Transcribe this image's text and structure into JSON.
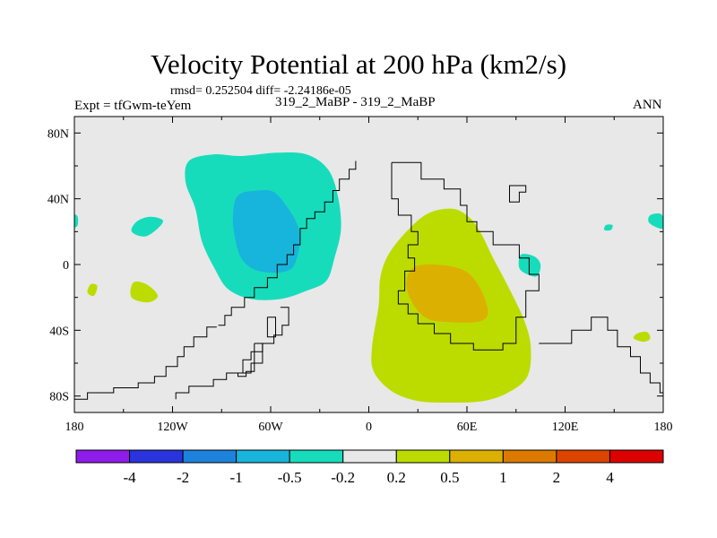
{
  "chart_data": {
    "type": "contour-map",
    "title": "Velocity Potential at 200 hPa (km2/s)",
    "stats": "rmsd= 0.252504 diff= -2.24186e-05",
    "experiment": "Expt = tfGwm-teYem",
    "case": "319_2_MaBP - 319_2_MaBP",
    "season": "ANN",
    "xlim": [
      -180,
      180
    ],
    "ylim": [
      -90,
      90
    ],
    "x_ticks": [
      {
        "value": -180,
        "label": "180"
      },
      {
        "value": -120,
        "label": "120W"
      },
      {
        "value": -60,
        "label": "60W"
      },
      {
        "value": 0,
        "label": "0"
      },
      {
        "value": 60,
        "label": "60E"
      },
      {
        "value": 120,
        "label": "120E"
      },
      {
        "value": 180,
        "label": "180"
      }
    ],
    "y_ticks": [
      {
        "value": 80,
        "label": "80N"
      },
      {
        "value": 40,
        "label": "40N"
      },
      {
        "value": 0,
        "label": "0"
      },
      {
        "value": -40,
        "label": "40S"
      },
      {
        "value": -80,
        "label": "80S"
      }
    ],
    "levels": [
      "-4",
      "-2",
      "-1",
      "-0.5",
      "-0.2",
      "0.2",
      "0.5",
      "1",
      "2",
      "4"
    ],
    "fill_colors": [
      "#8f1cea",
      "#2a33dc",
      "#1d82dc",
      "#17b4dc",
      "#17dcbc",
      "#e8e8e8",
      "#bcdc00",
      "#dcb000",
      "#dc7a00",
      "#dc4400",
      "#dc0000"
    ],
    "background_color": "#e8e8e8",
    "regions": [
      {
        "name": "western-hemisphere-negative-low",
        "level_index": 4,
        "outline": [
          [
            -110,
            63
          ],
          [
            -95,
            67
          ],
          [
            -78,
            66
          ],
          [
            -56,
            68
          ],
          [
            -38,
            67
          ],
          [
            -25,
            58
          ],
          [
            -19,
            42
          ],
          [
            -17,
            22
          ],
          [
            -21,
            4
          ],
          [
            -26,
            -10
          ],
          [
            -38,
            -16
          ],
          [
            -54,
            -21
          ],
          [
            -72,
            -21
          ],
          [
            -86,
            -15
          ],
          [
            -94,
            -3
          ],
          [
            -102,
            14
          ],
          [
            -106,
            34
          ],
          [
            -112,
            50
          ]
        ]
      },
      {
        "name": "western-hemisphere-negative-core",
        "level_index": 3,
        "outline": [
          [
            -80,
            42
          ],
          [
            -68,
            45
          ],
          [
            -58,
            44
          ],
          [
            -50,
            35
          ],
          [
            -44,
            25
          ],
          [
            -42,
            16
          ],
          [
            -44,
            4
          ],
          [
            -48,
            -3
          ],
          [
            -58,
            -5
          ],
          [
            -70,
            -3
          ],
          [
            -78,
            4
          ],
          [
            -82,
            17
          ],
          [
            -83,
            30
          ]
        ]
      },
      {
        "name": "pacific-small-negative",
        "level_index": 4,
        "outline": [
          [
            -142,
            26
          ],
          [
            -134,
            29
          ],
          [
            -126,
            27
          ],
          [
            -129,
            22
          ],
          [
            -137,
            17
          ],
          [
            -145,
            20
          ]
        ]
      },
      {
        "name": "far-east-negative-patch",
        "level_index": 4,
        "outline": [
          [
            172,
            30
          ],
          [
            178,
            31
          ],
          [
            180,
            28
          ],
          [
            180,
            22
          ],
          [
            175,
            23
          ],
          [
            171,
            26
          ]
        ]
      },
      {
        "name": "tiny-east-negative-patch",
        "level_index": 4,
        "outline": [
          [
            145,
            24
          ],
          [
            149,
            24
          ],
          [
            148,
            21
          ],
          [
            144,
            21
          ]
        ]
      },
      {
        "name": "west-edge-negative-patch",
        "level_index": 4,
        "outline": [
          [
            -180,
            30
          ],
          [
            -178,
            29
          ],
          [
            -178,
            24
          ],
          [
            -180,
            23
          ]
        ]
      },
      {
        "name": "indian-ocean-negative-patch",
        "level_index": 4,
        "outline": [
          [
            93,
            6
          ],
          [
            101,
            5
          ],
          [
            105,
            0
          ],
          [
            103,
            -7
          ],
          [
            97,
            -6
          ],
          [
            92,
            -2
          ]
        ]
      },
      {
        "name": "eastern-hemisphere-positive-low",
        "level_index": 6,
        "outline": [
          [
            23,
            20
          ],
          [
            36,
            31
          ],
          [
            51,
            34
          ],
          [
            61,
            29
          ],
          [
            68,
            20
          ],
          [
            76,
            4
          ],
          [
            86,
            -15
          ],
          [
            95,
            -34
          ],
          [
            99,
            -50
          ],
          [
            97,
            -68
          ],
          [
            85,
            -78
          ],
          [
            70,
            -83
          ],
          [
            50,
            -84
          ],
          [
            30,
            -83
          ],
          [
            14,
            -77
          ],
          [
            3,
            -65
          ],
          [
            2,
            -50
          ],
          [
            6,
            -25
          ],
          [
            7,
            -8
          ],
          [
            12,
            6
          ]
        ]
      },
      {
        "name": "eastern-hemisphere-positive-core",
        "level_index": 7,
        "outline": [
          [
            27,
            -2
          ],
          [
            40,
            0
          ],
          [
            57,
            -3
          ],
          [
            66,
            -11
          ],
          [
            72,
            -24
          ],
          [
            72,
            -32
          ],
          [
            65,
            -35
          ],
          [
            50,
            -35
          ],
          [
            36,
            -33
          ],
          [
            27,
            -24
          ],
          [
            23,
            -12
          ]
        ]
      },
      {
        "name": "pacific-positive-patch-1",
        "level_index": 6,
        "outline": [
          [
            -170,
            -12
          ],
          [
            -166,
            -13
          ],
          [
            -168,
            -19
          ],
          [
            -172,
            -17
          ]
        ]
      },
      {
        "name": "pacific-positive-patch-2",
        "level_index": 6,
        "outline": [
          [
            -144,
            -11
          ],
          [
            -136,
            -12
          ],
          [
            -129,
            -19
          ],
          [
            -135,
            -23
          ],
          [
            -145,
            -20
          ]
        ]
      },
      {
        "name": "east-pacific-positive-patch",
        "level_index": 6,
        "outline": [
          [
            164,
            -42
          ],
          [
            170,
            -41
          ],
          [
            172,
            -45
          ],
          [
            168,
            -47
          ],
          [
            162,
            -45
          ]
        ]
      }
    ],
    "coastlines": [
      {
        "name": "north-america-outline",
        "points": [
          [
            -8,
            63
          ],
          [
            -8,
            58
          ],
          [
            -12,
            58
          ],
          [
            -12,
            52
          ],
          [
            -18,
            52
          ],
          [
            -18,
            45
          ],
          [
            -22,
            45
          ],
          [
            -22,
            38
          ],
          [
            -27,
            38
          ],
          [
            -27,
            32
          ],
          [
            -33,
            32
          ],
          [
            -33,
            28
          ],
          [
            -38,
            28
          ],
          [
            -38,
            22
          ],
          [
            -42,
            22
          ],
          [
            -42,
            12
          ],
          [
            -46,
            12
          ],
          [
            -46,
            6
          ],
          [
            -50,
            6
          ],
          [
            -50,
            0
          ],
          [
            -56,
            0
          ],
          [
            -56,
            -8
          ],
          [
            -62,
            -8
          ],
          [
            -62,
            -14
          ],
          [
            -70,
            -14
          ],
          [
            -70,
            -20
          ],
          [
            -76,
            -20
          ],
          [
            -76,
            -26
          ],
          [
            -84,
            -26
          ],
          [
            -84,
            -31
          ],
          [
            -88,
            -31
          ],
          [
            -88,
            -37
          ],
          [
            -92,
            -37
          ]
        ]
      },
      {
        "name": "south-america-west-outline",
        "points": [
          [
            -93,
            -38
          ],
          [
            -99,
            -38
          ],
          [
            -99,
            -44
          ],
          [
            -107,
            -44
          ],
          [
            -107,
            -50
          ],
          [
            -113,
            -50
          ],
          [
            -113,
            -56
          ],
          [
            -117,
            -56
          ],
          [
            -117,
            -62
          ],
          [
            -124,
            -62
          ],
          [
            -124,
            -68
          ],
          [
            -131,
            -68
          ],
          [
            -131,
            -72
          ],
          [
            -141,
            -72
          ],
          [
            -141,
            -75
          ],
          [
            -156,
            -75
          ],
          [
            -156,
            -78
          ],
          [
            -172,
            -78
          ],
          [
            -172,
            -82
          ],
          [
            -180,
            -82
          ]
        ]
      },
      {
        "name": "south-america-east-outline",
        "points": [
          [
            -54,
            -26
          ],
          [
            -49,
            -26
          ],
          [
            -49,
            -37
          ],
          [
            -53,
            -37
          ],
          [
            -53,
            -43
          ],
          [
            -58,
            -43
          ],
          [
            -58,
            -48
          ],
          [
            -65,
            -48
          ],
          [
            -65,
            -53
          ],
          [
            -72,
            -53
          ],
          [
            -72,
            -58
          ],
          [
            -77,
            -58
          ],
          [
            -77,
            -66
          ],
          [
            -87,
            -66
          ],
          [
            -87,
            -70
          ],
          [
            -95,
            -70
          ],
          [
            -95,
            -74
          ],
          [
            -110,
            -74
          ],
          [
            -110,
            -78
          ],
          [
            -118,
            -78
          ],
          [
            -118,
            -82
          ]
        ]
      },
      {
        "name": "southern-peninsula-outline",
        "points": [
          [
            -70,
            -48
          ],
          [
            -65,
            -48
          ],
          [
            -65,
            -60
          ],
          [
            -72,
            -60
          ],
          [
            -72,
            -66
          ],
          [
            -80,
            -66
          ],
          [
            -80,
            -68
          ],
          [
            -75,
            -68
          ],
          [
            -75,
            -65
          ],
          [
            -70,
            -65
          ],
          [
            -70,
            -48
          ]
        ]
      },
      {
        "name": "atlantic-loop-outline",
        "points": [
          [
            -62,
            -32
          ],
          [
            -57,
            -32
          ],
          [
            -57,
            -44
          ],
          [
            -62,
            -44
          ],
          [
            -62,
            -32
          ]
        ]
      },
      {
        "name": "eurasia-africa-outline",
        "points": [
          [
            14,
            62
          ],
          [
            32,
            62
          ],
          [
            32,
            52
          ],
          [
            46,
            52
          ],
          [
            46,
            46
          ],
          [
            56,
            46
          ],
          [
            56,
            36
          ],
          [
            60,
            36
          ],
          [
            60,
            26
          ],
          [
            66,
            26
          ],
          [
            66,
            20
          ],
          [
            76,
            20
          ],
          [
            76,
            12
          ],
          [
            92,
            12
          ],
          [
            92,
            4
          ],
          [
            98,
            4
          ],
          [
            98,
            -6
          ],
          [
            104,
            -6
          ],
          [
            104,
            -16
          ],
          [
            96,
            -16
          ],
          [
            96,
            -32
          ],
          [
            90,
            -32
          ],
          [
            90,
            -48
          ],
          [
            82,
            -48
          ],
          [
            82,
            -52
          ],
          [
            64,
            -52
          ],
          [
            64,
            -48
          ],
          [
            50,
            -48
          ],
          [
            50,
            -42
          ],
          [
            40,
            -42
          ],
          [
            40,
            -36
          ],
          [
            30,
            -36
          ],
          [
            30,
            -30
          ],
          [
            24,
            -30
          ],
          [
            24,
            -24
          ],
          [
            18,
            -24
          ],
          [
            18,
            -16
          ],
          [
            22,
            -16
          ],
          [
            22,
            -4
          ],
          [
            28,
            -4
          ],
          [
            28,
            4
          ],
          [
            24,
            4
          ],
          [
            24,
            12
          ],
          [
            30,
            12
          ],
          [
            30,
            20
          ],
          [
            26,
            20
          ],
          [
            26,
            30
          ],
          [
            18,
            30
          ],
          [
            18,
            40
          ],
          [
            14,
            40
          ],
          [
            14,
            62
          ]
        ]
      },
      {
        "name": "australia-outline",
        "points": [
          [
            104,
            -48
          ],
          [
            124,
            -48
          ],
          [
            124,
            -40
          ],
          [
            136,
            -40
          ],
          [
            136,
            -32
          ],
          [
            146,
            -32
          ],
          [
            146,
            -40
          ],
          [
            152,
            -40
          ],
          [
            152,
            -50
          ],
          [
            160,
            -50
          ],
          [
            160,
            -56
          ],
          [
            166,
            -56
          ],
          [
            166,
            -66
          ],
          [
            172,
            -66
          ],
          [
            172,
            -72
          ],
          [
            178,
            -72
          ],
          [
            178,
            -78
          ],
          [
            180,
            -78
          ]
        ]
      },
      {
        "name": "japan-islands-outline",
        "points": [
          [
            86,
            44
          ],
          [
            86,
            38
          ],
          [
            92,
            38
          ],
          [
            92,
            44
          ],
          [
            96,
            44
          ],
          [
            96,
            48
          ],
          [
            86,
            48
          ],
          [
            86,
            44
          ]
        ]
      }
    ]
  }
}
